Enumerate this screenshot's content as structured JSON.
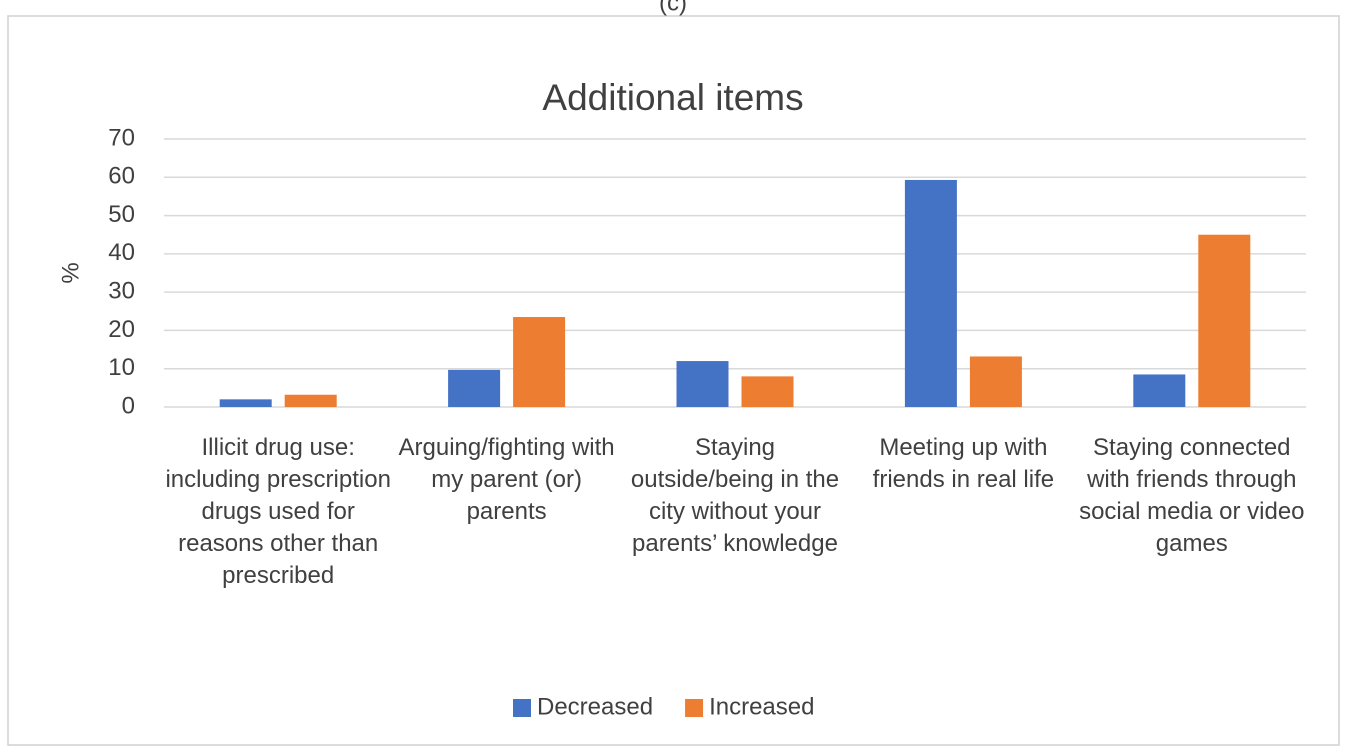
{
  "chart_data": {
    "type": "bar",
    "panel_label": "(c)",
    "title": "Additional items",
    "y_label": "%",
    "categories": [
      "Illicit drug use: including prescription drugs used for reasons other than prescribed",
      "Arguing/fighting with my parent (or) parents",
      "Staying outside/being in the city without your parents’ knowledge",
      "Meeting up with friends in real life",
      "Staying connected with friends through social media or video games"
    ],
    "series": [
      {
        "name": "Decreased",
        "color": "#4472c4",
        "values": [
          2,
          9.7,
          12,
          59.3,
          8.5
        ]
      },
      {
        "name": "Increased",
        "color": "#ed7d31",
        "values": [
          3.2,
          23.5,
          8,
          13.2,
          45
        ]
      }
    ],
    "ylim": [
      0,
      70
    ],
    "yticks": [
      0,
      10,
      20,
      30,
      40,
      50,
      60,
      70
    ],
    "grid": true,
    "legend": "bottom"
  }
}
